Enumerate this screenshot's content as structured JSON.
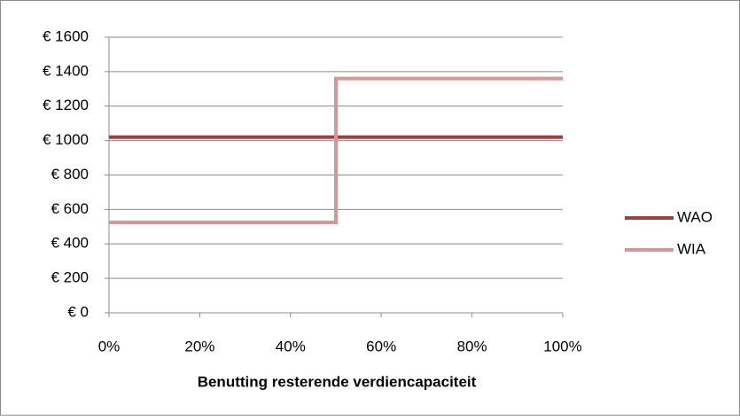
{
  "chart_data": {
    "type": "line",
    "x_label": "Benutting resterende verdiencapaciteit",
    "series": [
      {
        "name": "WAO",
        "color": "#a0403e",
        "x": [
          0,
          100
        ],
        "values": [
          1020,
          1020
        ]
      },
      {
        "name": "WIA",
        "color": "#d99594",
        "x": [
          0,
          50,
          50,
          100
        ],
        "values": [
          525,
          525,
          1360,
          1360
        ]
      }
    ],
    "xlim": [
      0,
      100
    ],
    "xticks": [
      {
        "value": 0,
        "label": "0%"
      },
      {
        "value": 20,
        "label": "20%"
      },
      {
        "value": 40,
        "label": "40%"
      },
      {
        "value": 60,
        "label": "60%"
      },
      {
        "value": 80,
        "label": "80%"
      },
      {
        "value": 100,
        "label": "100%"
      }
    ],
    "ylim": [
      0,
      1600
    ],
    "yticks": [
      {
        "value": 0,
        "label": "€ 0"
      },
      {
        "value": 200,
        "label": "€ 200"
      },
      {
        "value": 400,
        "label": "€ 400"
      },
      {
        "value": 600,
        "label": "€ 600"
      },
      {
        "value": 800,
        "label": "€ 800"
      },
      {
        "value": 1000,
        "label": "€ 1000"
      },
      {
        "value": 1200,
        "label": "€ 1200"
      },
      {
        "value": 1400,
        "label": "€ 1400"
      },
      {
        "value": 1600,
        "label": "€ 1600"
      }
    ],
    "grid": true,
    "legend": "right"
  }
}
